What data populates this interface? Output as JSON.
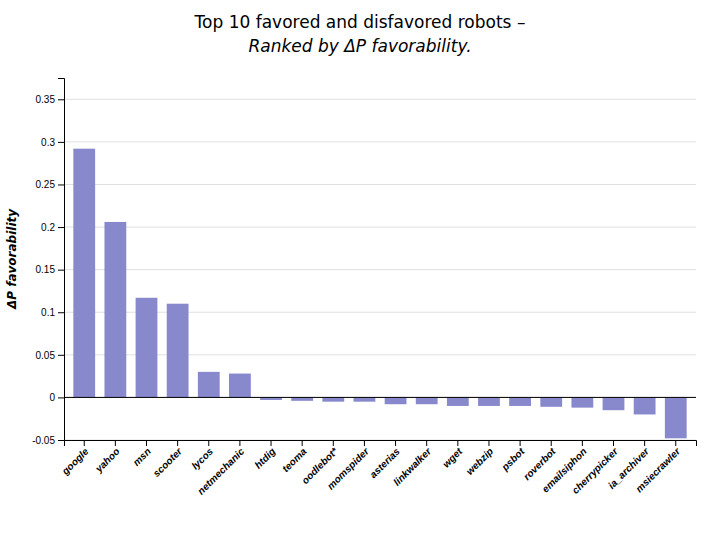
{
  "chart_data": {
    "type": "bar",
    "title": "Top 10 favored and disfavored robots –",
    "subtitle": "Ranked by ΔP favorability.",
    "ylabel": "ΔP favorability",
    "categories": [
      "google",
      "yahoo",
      "msn",
      "scooter",
      "lycos",
      "netmechanic",
      "htdig",
      "teoma",
      "oodlebot*",
      "momspider",
      "asterias",
      "linkwalker",
      "wget",
      "webzip",
      "psbot",
      "roverbot",
      "emailsiphon",
      "cherrypicker",
      "ia_archiver",
      "msiecrawler"
    ],
    "values": [
      0.292,
      0.206,
      0.117,
      0.11,
      0.03,
      0.028,
      -0.003,
      -0.004,
      -0.005,
      -0.005,
      -0.008,
      -0.008,
      -0.01,
      -0.01,
      -0.01,
      -0.011,
      -0.012,
      -0.015,
      -0.02,
      -0.048
    ],
    "color": "#8888cc",
    "ylim": [
      -0.05,
      0.375
    ],
    "yticks": [
      -0.05,
      0,
      0.05,
      0.1,
      0.15,
      0.2,
      0.25,
      0.3,
      0.35
    ],
    "grid": true
  }
}
